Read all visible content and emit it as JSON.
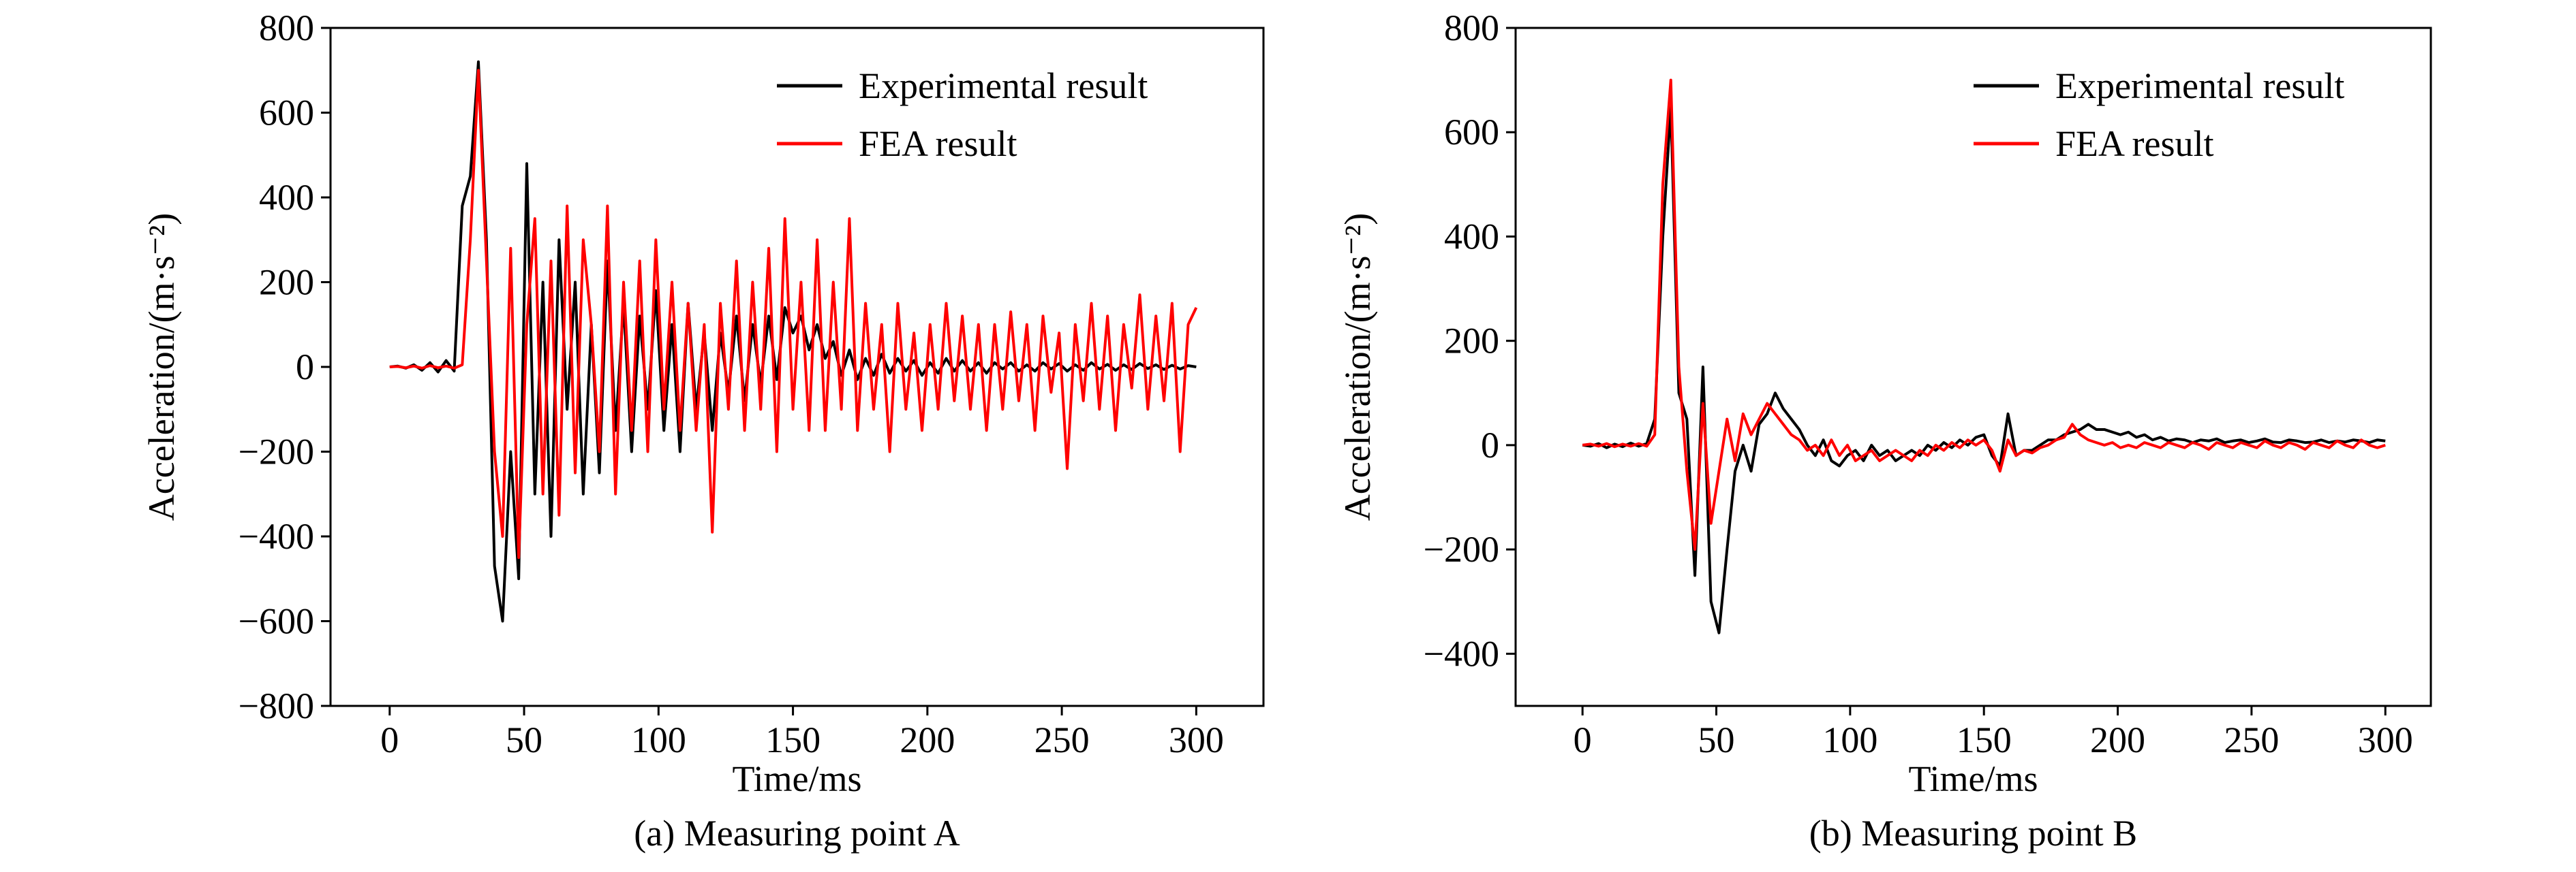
{
  "chart_data": [
    {
      "type": "line",
      "x": [
        0,
        3,
        6,
        9,
        12,
        15,
        18,
        21,
        24,
        27,
        30,
        33,
        36,
        39,
        42,
        45,
        48,
        51,
        54,
        57,
        60,
        63,
        66,
        69,
        72,
        75,
        78,
        81,
        84,
        87,
        90,
        93,
        96,
        99,
        102,
        105,
        108,
        111,
        114,
        117,
        120,
        123,
        126,
        129,
        132,
        135,
        138,
        141,
        144,
        147,
        150,
        153,
        156,
        159,
        162,
        165,
        168,
        171,
        174,
        177,
        180,
        183,
        186,
        189,
        192,
        195,
        198,
        201,
        204,
        207,
        210,
        213,
        216,
        219,
        222,
        225,
        228,
        231,
        234,
        237,
        240,
        243,
        246,
        249,
        252,
        255,
        258,
        261,
        264,
        267,
        270,
        273,
        276,
        279,
        282,
        285,
        288,
        291,
        294,
        297,
        300
      ],
      "series": [
        {
          "name": "Experimental result",
          "color": "#000000",
          "values": [
            0,
            2,
            -3,
            5,
            -8,
            10,
            -12,
            15,
            -10,
            380,
            450,
            720,
            300,
            -470,
            -600,
            -200,
            -500,
            480,
            -300,
            200,
            -400,
            300,
            -100,
            200,
            -300,
            100,
            -250,
            250,
            -150,
            150,
            -200,
            120,
            -100,
            180,
            -150,
            100,
            -200,
            150,
            -100,
            80,
            -150,
            80,
            -60,
            120,
            -80,
            100,
            -40,
            120,
            -30,
            140,
            80,
            120,
            40,
            100,
            20,
            60,
            -20,
            40,
            -30,
            20,
            -20,
            30,
            -15,
            20,
            -10,
            15,
            -20,
            10,
            -15,
            20,
            -10,
            15,
            -10,
            10,
            -15,
            10,
            -5,
            10,
            -10,
            5,
            -10,
            10,
            -5,
            8,
            -10,
            5,
            -8,
            10,
            -5,
            6,
            -8,
            5,
            -6,
            8,
            -4,
            5,
            -6,
            4,
            -5,
            3,
            0
          ]
        },
        {
          "name": "FEA result",
          "color": "#ff0000",
          "values": [
            0,
            1,
            -2,
            2,
            -3,
            3,
            -2,
            2,
            -3,
            5,
            300,
            700,
            250,
            -200,
            -400,
            280,
            -450,
            100,
            350,
            -300,
            250,
            -350,
            380,
            -250,
            300,
            100,
            -200,
            380,
            -300,
            200,
            -150,
            250,
            -200,
            300,
            -100,
            200,
            -150,
            150,
            -150,
            100,
            -390,
            150,
            -100,
            250,
            -150,
            200,
            -100,
            280,
            -200,
            350,
            -100,
            200,
            -150,
            300,
            -150,
            200,
            -100,
            350,
            -150,
            150,
            -100,
            100,
            -200,
            150,
            -100,
            80,
            -150,
            100,
            -100,
            150,
            -80,
            120,
            -100,
            100,
            -150,
            100,
            -100,
            130,
            -80,
            100,
            -150,
            120,
            -60,
            80,
            -240,
            100,
            -80,
            150,
            -100,
            120,
            -150,
            100,
            -50,
            170,
            -100,
            120,
            -80,
            150,
            -200,
            100,
            140
          ]
        }
      ],
      "xlim": [
        -22,
        325
      ],
      "ylim": [
        -800,
        800
      ],
      "xticks": [
        0,
        50,
        100,
        150,
        200,
        250,
        300
      ],
      "yticks": [
        {
          "value": -800,
          "label": "−800"
        },
        {
          "value": -600,
          "label": "−600"
        },
        {
          "value": -400,
          "label": "−400"
        },
        {
          "value": -200,
          "label": "−200"
        },
        0,
        200,
        400,
        600,
        800
      ],
      "x_label": "Time/ms",
      "y_label": "Acceleration/(m·s⁻²)",
      "caption": "(a) Measuring point A",
      "legend": "upper right"
    },
    {
      "type": "line",
      "x": [
        0,
        3,
        6,
        9,
        12,
        15,
        18,
        21,
        24,
        27,
        30,
        33,
        36,
        39,
        42,
        45,
        48,
        51,
        54,
        57,
        60,
        63,
        66,
        69,
        72,
        75,
        78,
        81,
        84,
        87,
        90,
        93,
        96,
        99,
        102,
        105,
        108,
        111,
        114,
        117,
        120,
        123,
        126,
        129,
        132,
        135,
        138,
        141,
        144,
        147,
        150,
        153,
        156,
        159,
        162,
        165,
        168,
        171,
        174,
        177,
        180,
        183,
        186,
        189,
        192,
        195,
        198,
        201,
        204,
        207,
        210,
        213,
        216,
        219,
        222,
        225,
        228,
        231,
        234,
        237,
        240,
        243,
        246,
        249,
        252,
        255,
        258,
        261,
        264,
        267,
        270,
        273,
        276,
        279,
        282,
        285,
        288,
        291,
        294,
        297,
        300
      ],
      "series": [
        {
          "name": "Experimental result",
          "color": "#000000",
          "values": [
            0,
            -2,
            3,
            -5,
            2,
            -3,
            4,
            -2,
            3,
            50,
            400,
            650,
            100,
            50,
            -250,
            150,
            -300,
            -360,
            -200,
            -50,
            0,
            -50,
            40,
            60,
            100,
            70,
            50,
            30,
            0,
            -20,
            10,
            -30,
            -40,
            -20,
            -10,
            -30,
            0,
            -20,
            -10,
            -30,
            -20,
            -10,
            -20,
            0,
            -10,
            5,
            -5,
            10,
            0,
            15,
            20,
            -20,
            -40,
            60,
            -20,
            -10,
            -10,
            0,
            10,
            10,
            20,
            25,
            30,
            40,
            30,
            30,
            25,
            20,
            25,
            15,
            20,
            10,
            15,
            8,
            12,
            10,
            5,
            10,
            8,
            12,
            5,
            8,
            10,
            5,
            8,
            12,
            6,
            5,
            10,
            8,
            5,
            6,
            10,
            5,
            8,
            6,
            10,
            8,
            5,
            10,
            8
          ]
        },
        {
          "name": "FEA result",
          "color": "#ff0000",
          "values": [
            0,
            2,
            -2,
            3,
            -3,
            2,
            -2,
            3,
            -2,
            20,
            500,
            700,
            150,
            -50,
            -200,
            80,
            -150,
            -50,
            50,
            -30,
            60,
            20,
            50,
            80,
            60,
            40,
            20,
            10,
            -10,
            0,
            -20,
            10,
            -20,
            0,
            -30,
            -20,
            -10,
            -30,
            -20,
            -10,
            -20,
            -30,
            -10,
            -20,
            0,
            -10,
            5,
            -5,
            10,
            0,
            10,
            -10,
            -50,
            10,
            -20,
            -10,
            -15,
            -5,
            0,
            10,
            15,
            40,
            20,
            10,
            5,
            0,
            5,
            -5,
            0,
            -5,
            5,
            0,
            -5,
            5,
            0,
            -5,
            5,
            0,
            -8,
            5,
            0,
            -5,
            5,
            0,
            -5,
            8,
            0,
            -5,
            5,
            0,
            -8,
            5,
            0,
            -5,
            8,
            0,
            -5,
            10,
            0,
            -5,
            0
          ]
        }
      ],
      "xlim": [
        -25,
        317
      ],
      "ylim": [
        -500,
        800
      ],
      "xticks": [
        0,
        50,
        100,
        150,
        200,
        250,
        300
      ],
      "yticks": [
        {
          "value": -400,
          "label": "−400"
        },
        {
          "value": -200,
          "label": "−200"
        },
        0,
        200,
        400,
        600,
        800
      ],
      "x_label": "Time/ms",
      "y_label": "Acceleration/(m·s⁻²)",
      "caption": "(b) Measuring point B",
      "legend": "upper right"
    }
  ]
}
